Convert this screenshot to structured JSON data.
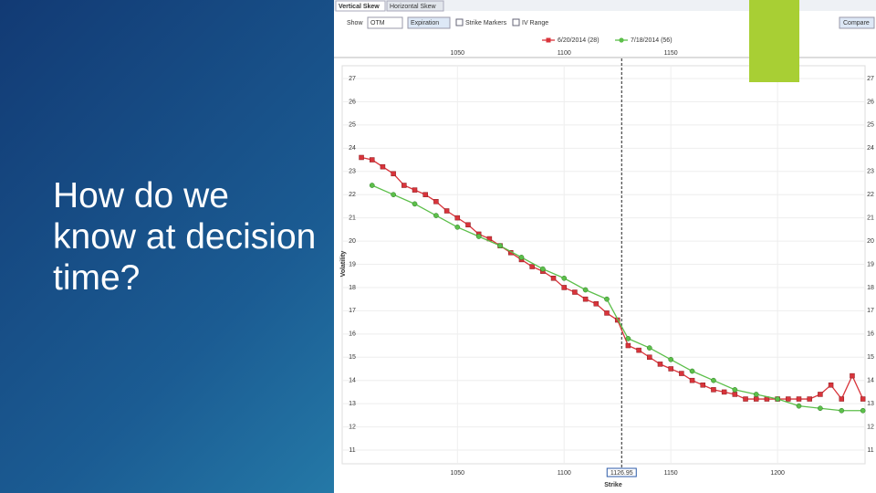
{
  "slide": {
    "title": "How do we know at decision time?"
  },
  "toolbar": {
    "tabs": [
      "Vertical Skew",
      "Horizontal Skew"
    ],
    "show_label": "Show",
    "show_value": "OTM",
    "mode": "Expiration",
    "checkboxes": [
      "Strike Markers",
      "IV Range"
    ],
    "button": "Compare"
  },
  "chart_data": {
    "type": "line",
    "x_label": "Strike",
    "y_label": "Volatility",
    "xlim": [
      996,
      1241
    ],
    "xticks": [
      1050,
      1100,
      1150,
      1200
    ],
    "ylim": [
      11,
      27
    ],
    "yticks": [
      11,
      12,
      13,
      14,
      15,
      16,
      17,
      18,
      19,
      20,
      21,
      22,
      23,
      24,
      25,
      26,
      27
    ],
    "grid": true,
    "crosshair_x": 1126.95,
    "series": [
      {
        "name": "6/20/2014 (28)",
        "color": "#d9343b",
        "x": [
          1005,
          1010,
          1015,
          1020,
          1025,
          1030,
          1035,
          1040,
          1045,
          1050,
          1055,
          1060,
          1065,
          1070,
          1075,
          1080,
          1085,
          1090,
          1095,
          1100,
          1105,
          1110,
          1115,
          1120,
          1125,
          1130,
          1135,
          1140,
          1145,
          1150,
          1155,
          1160,
          1165,
          1170,
          1175,
          1180,
          1185,
          1190,
          1195,
          1200,
          1205,
          1210,
          1215,
          1220,
          1225,
          1230,
          1235,
          1240
        ],
        "values": [
          23.6,
          23.5,
          23.2,
          22.9,
          22.4,
          22.2,
          22.0,
          21.7,
          21.3,
          21.0,
          20.7,
          20.3,
          20.1,
          19.8,
          19.5,
          19.2,
          18.9,
          18.7,
          18.4,
          18.0,
          17.8,
          17.5,
          17.3,
          16.9,
          16.6,
          15.5,
          15.3,
          15.0,
          14.7,
          14.5,
          14.3,
          14.0,
          13.8,
          13.6,
          13.5,
          13.4,
          13.2,
          13.2,
          13.2,
          13.2,
          13.2,
          13.2,
          13.2,
          13.4,
          13.8,
          13.2,
          14.2,
          13.2
        ]
      },
      {
        "name": "7/18/2014 (56)",
        "color": "#5cbf4a",
        "x": [
          1010,
          1020,
          1030,
          1040,
          1050,
          1060,
          1070,
          1080,
          1090,
          1100,
          1110,
          1120,
          1130,
          1140,
          1150,
          1160,
          1170,
          1180,
          1190,
          1200,
          1210,
          1220,
          1230,
          1240
        ],
        "values": [
          22.4,
          22.0,
          21.6,
          21.1,
          20.6,
          20.2,
          19.8,
          19.3,
          18.8,
          18.4,
          17.9,
          17.5,
          15.8,
          15.4,
          14.9,
          14.4,
          14.0,
          13.6,
          13.4,
          13.2,
          12.9,
          12.8,
          12.7,
          12.7
        ]
      }
    ]
  }
}
